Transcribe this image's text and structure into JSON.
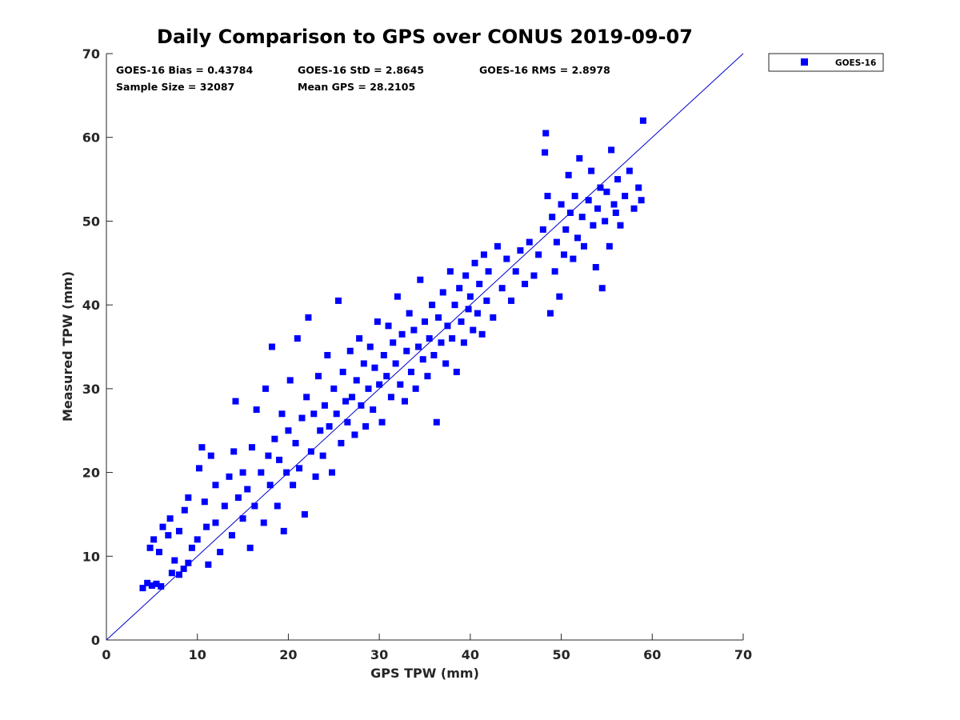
{
  "chart_data": {
    "type": "scatter",
    "title": "Daily Comparison to GPS over CONUS 2019-09-07",
    "xlabel": "GPS TPW (mm)",
    "ylabel": "Measured TPW (mm)",
    "xlim": [
      0,
      70
    ],
    "ylim": [
      0,
      70
    ],
    "xticks": [
      "0",
      "10",
      "20",
      "30",
      "40",
      "50",
      "60",
      "70"
    ],
    "yticks": [
      "0",
      "10",
      "20",
      "30",
      "40",
      "50",
      "60",
      "70"
    ],
    "grid": false,
    "legend_position": "outside-top-right",
    "reference_line": {
      "label": "1:1",
      "from": [
        0,
        0
      ],
      "to": [
        70,
        70
      ],
      "color": "#0000cc"
    },
    "stats": {
      "bias": "GOES-16 Bias = 0.43784",
      "std": "GOES-16 StD = 2.8645",
      "rms": "GOES-16 RMS = 2.8978",
      "sample_size": "Sample Size = 32087",
      "mean_gps": "Mean GPS = 28.2105"
    },
    "series": [
      {
        "name": "GOES-16",
        "color": "#0000ff",
        "marker": "square",
        "points": [
          [
            4.0,
            6.2
          ],
          [
            4.5,
            6.8
          ],
          [
            5.0,
            6.5
          ],
          [
            5.5,
            6.7
          ],
          [
            6.0,
            6.4
          ],
          [
            4.8,
            11.0
          ],
          [
            5.2,
            12.0
          ],
          [
            5.8,
            10.5
          ],
          [
            6.2,
            13.5
          ],
          [
            6.8,
            12.5
          ],
          [
            7.0,
            14.5
          ],
          [
            7.5,
            9.5
          ],
          [
            7.2,
            8.0
          ],
          [
            8.0,
            7.8
          ],
          [
            8.5,
            8.5
          ],
          [
            8.0,
            13.0
          ],
          [
            8.6,
            15.5
          ],
          [
            9.0,
            17.0
          ],
          [
            9.4,
            11.0
          ],
          [
            9.0,
            9.2
          ],
          [
            10.0,
            12.0
          ],
          [
            10.2,
            20.5
          ],
          [
            10.5,
            23.0
          ],
          [
            10.8,
            16.5
          ],
          [
            11.0,
            13.5
          ],
          [
            11.2,
            9.0
          ],
          [
            11.5,
            22.0
          ],
          [
            12.0,
            18.5
          ],
          [
            12.0,
            14.0
          ],
          [
            12.5,
            10.5
          ],
          [
            13.0,
            16.0
          ],
          [
            13.5,
            19.5
          ],
          [
            13.8,
            12.5
          ],
          [
            14.0,
            22.5
          ],
          [
            14.2,
            28.5
          ],
          [
            14.5,
            17.0
          ],
          [
            15.0,
            14.5
          ],
          [
            15.0,
            20.0
          ],
          [
            15.5,
            18.0
          ],
          [
            15.8,
            11.0
          ],
          [
            16.0,
            23.0
          ],
          [
            16.3,
            16.0
          ],
          [
            16.5,
            27.5
          ],
          [
            17.0,
            20.0
          ],
          [
            17.3,
            14.0
          ],
          [
            17.5,
            30.0
          ],
          [
            17.8,
            22.0
          ],
          [
            18.0,
            18.5
          ],
          [
            18.2,
            35.0
          ],
          [
            18.5,
            24.0
          ],
          [
            18.8,
            16.0
          ],
          [
            19.0,
            21.5
          ],
          [
            19.3,
            27.0
          ],
          [
            19.5,
            13.0
          ],
          [
            19.8,
            20.0
          ],
          [
            20.0,
            25.0
          ],
          [
            20.2,
            31.0
          ],
          [
            20.5,
            18.5
          ],
          [
            20.8,
            23.5
          ],
          [
            21.0,
            36.0
          ],
          [
            21.2,
            20.5
          ],
          [
            21.5,
            26.5
          ],
          [
            21.8,
            15.0
          ],
          [
            22.0,
            29.0
          ],
          [
            22.2,
            38.5
          ],
          [
            22.5,
            22.5
          ],
          [
            22.8,
            27.0
          ],
          [
            23.0,
            19.5
          ],
          [
            23.3,
            31.5
          ],
          [
            23.5,
            25.0
          ],
          [
            23.8,
            22.0
          ],
          [
            24.0,
            28.0
          ],
          [
            24.3,
            34.0
          ],
          [
            24.5,
            25.5
          ],
          [
            24.8,
            20.0
          ],
          [
            25.0,
            30.0
          ],
          [
            25.3,
            27.0
          ],
          [
            25.5,
            40.5
          ],
          [
            25.8,
            23.5
          ],
          [
            26.0,
            32.0
          ],
          [
            26.3,
            28.5
          ],
          [
            26.5,
            26.0
          ],
          [
            26.8,
            34.5
          ],
          [
            27.0,
            29.0
          ],
          [
            27.3,
            24.5
          ],
          [
            27.5,
            31.0
          ],
          [
            27.8,
            36.0
          ],
          [
            28.0,
            28.0
          ],
          [
            28.3,
            33.0
          ],
          [
            28.5,
            25.5
          ],
          [
            28.8,
            30.0
          ],
          [
            29.0,
            35.0
          ],
          [
            29.3,
            27.5
          ],
          [
            29.5,
            32.5
          ],
          [
            29.8,
            38.0
          ],
          [
            30.0,
            30.5
          ],
          [
            30.3,
            26.0
          ],
          [
            30.5,
            34.0
          ],
          [
            30.8,
            31.5
          ],
          [
            31.0,
            37.5
          ],
          [
            31.3,
            29.0
          ],
          [
            31.5,
            35.5
          ],
          [
            31.8,
            33.0
          ],
          [
            32.0,
            41.0
          ],
          [
            32.3,
            30.5
          ],
          [
            32.5,
            36.5
          ],
          [
            32.8,
            28.5
          ],
          [
            33.0,
            34.5
          ],
          [
            33.3,
            39.0
          ],
          [
            33.5,
            32.0
          ],
          [
            33.8,
            37.0
          ],
          [
            34.0,
            30.0
          ],
          [
            34.3,
            35.0
          ],
          [
            34.5,
            43.0
          ],
          [
            34.8,
            33.5
          ],
          [
            35.0,
            38.0
          ],
          [
            35.3,
            31.5
          ],
          [
            35.5,
            36.0
          ],
          [
            35.8,
            40.0
          ],
          [
            36.0,
            34.0
          ],
          [
            36.3,
            26.0
          ],
          [
            36.5,
            38.5
          ],
          [
            36.8,
            35.5
          ],
          [
            37.0,
            41.5
          ],
          [
            37.3,
            33.0
          ],
          [
            37.5,
            37.5
          ],
          [
            37.8,
            44.0
          ],
          [
            38.0,
            36.0
          ],
          [
            38.3,
            40.0
          ],
          [
            38.5,
            32.0
          ],
          [
            38.8,
            42.0
          ],
          [
            39.0,
            38.0
          ],
          [
            39.3,
            35.5
          ],
          [
            39.5,
            43.5
          ],
          [
            39.8,
            39.5
          ],
          [
            40.0,
            41.0
          ],
          [
            40.3,
            37.0
          ],
          [
            40.5,
            45.0
          ],
          [
            40.8,
            39.0
          ],
          [
            41.0,
            42.5
          ],
          [
            41.3,
            36.5
          ],
          [
            41.5,
            46.0
          ],
          [
            41.8,
            40.5
          ],
          [
            42.0,
            44.0
          ],
          [
            42.5,
            38.5
          ],
          [
            43.0,
            47.0
          ],
          [
            43.5,
            42.0
          ],
          [
            44.0,
            45.5
          ],
          [
            44.5,
            40.5
          ],
          [
            45.0,
            44.0
          ],
          [
            45.5,
            46.5
          ],
          [
            46.0,
            42.5
          ],
          [
            46.5,
            47.5
          ],
          [
            47.0,
            43.5
          ],
          [
            47.5,
            46.0
          ],
          [
            48.0,
            49.0
          ],
          [
            48.3,
            60.5
          ],
          [
            48.2,
            58.2
          ],
          [
            48.5,
            53.0
          ],
          [
            48.8,
            39.0
          ],
          [
            49.0,
            50.5
          ],
          [
            49.3,
            44.0
          ],
          [
            49.5,
            47.5
          ],
          [
            49.8,
            41.0
          ],
          [
            50.0,
            52.0
          ],
          [
            50.3,
            46.0
          ],
          [
            50.5,
            49.0
          ],
          [
            50.8,
            55.5
          ],
          [
            51.0,
            51.0
          ],
          [
            51.3,
            45.5
          ],
          [
            51.5,
            53.0
          ],
          [
            51.8,
            48.0
          ],
          [
            52.0,
            57.5
          ],
          [
            52.3,
            50.5
          ],
          [
            52.5,
            47.0
          ],
          [
            53.0,
            52.5
          ],
          [
            53.3,
            56.0
          ],
          [
            53.5,
            49.5
          ],
          [
            53.8,
            44.5
          ],
          [
            54.0,
            51.5
          ],
          [
            54.3,
            54.0
          ],
          [
            54.5,
            42.0
          ],
          [
            54.8,
            50.0
          ],
          [
            55.0,
            53.5
          ],
          [
            55.3,
            47.0
          ],
          [
            55.5,
            58.5
          ],
          [
            55.8,
            52.0
          ],
          [
            56.0,
            51.0
          ],
          [
            56.2,
            55.0
          ],
          [
            56.5,
            49.5
          ],
          [
            57.0,
            53.0
          ],
          [
            57.5,
            56.0
          ],
          [
            58.0,
            51.5
          ],
          [
            58.5,
            54.0
          ],
          [
            58.8,
            52.5
          ],
          [
            59.0,
            62.0
          ]
        ]
      }
    ]
  }
}
